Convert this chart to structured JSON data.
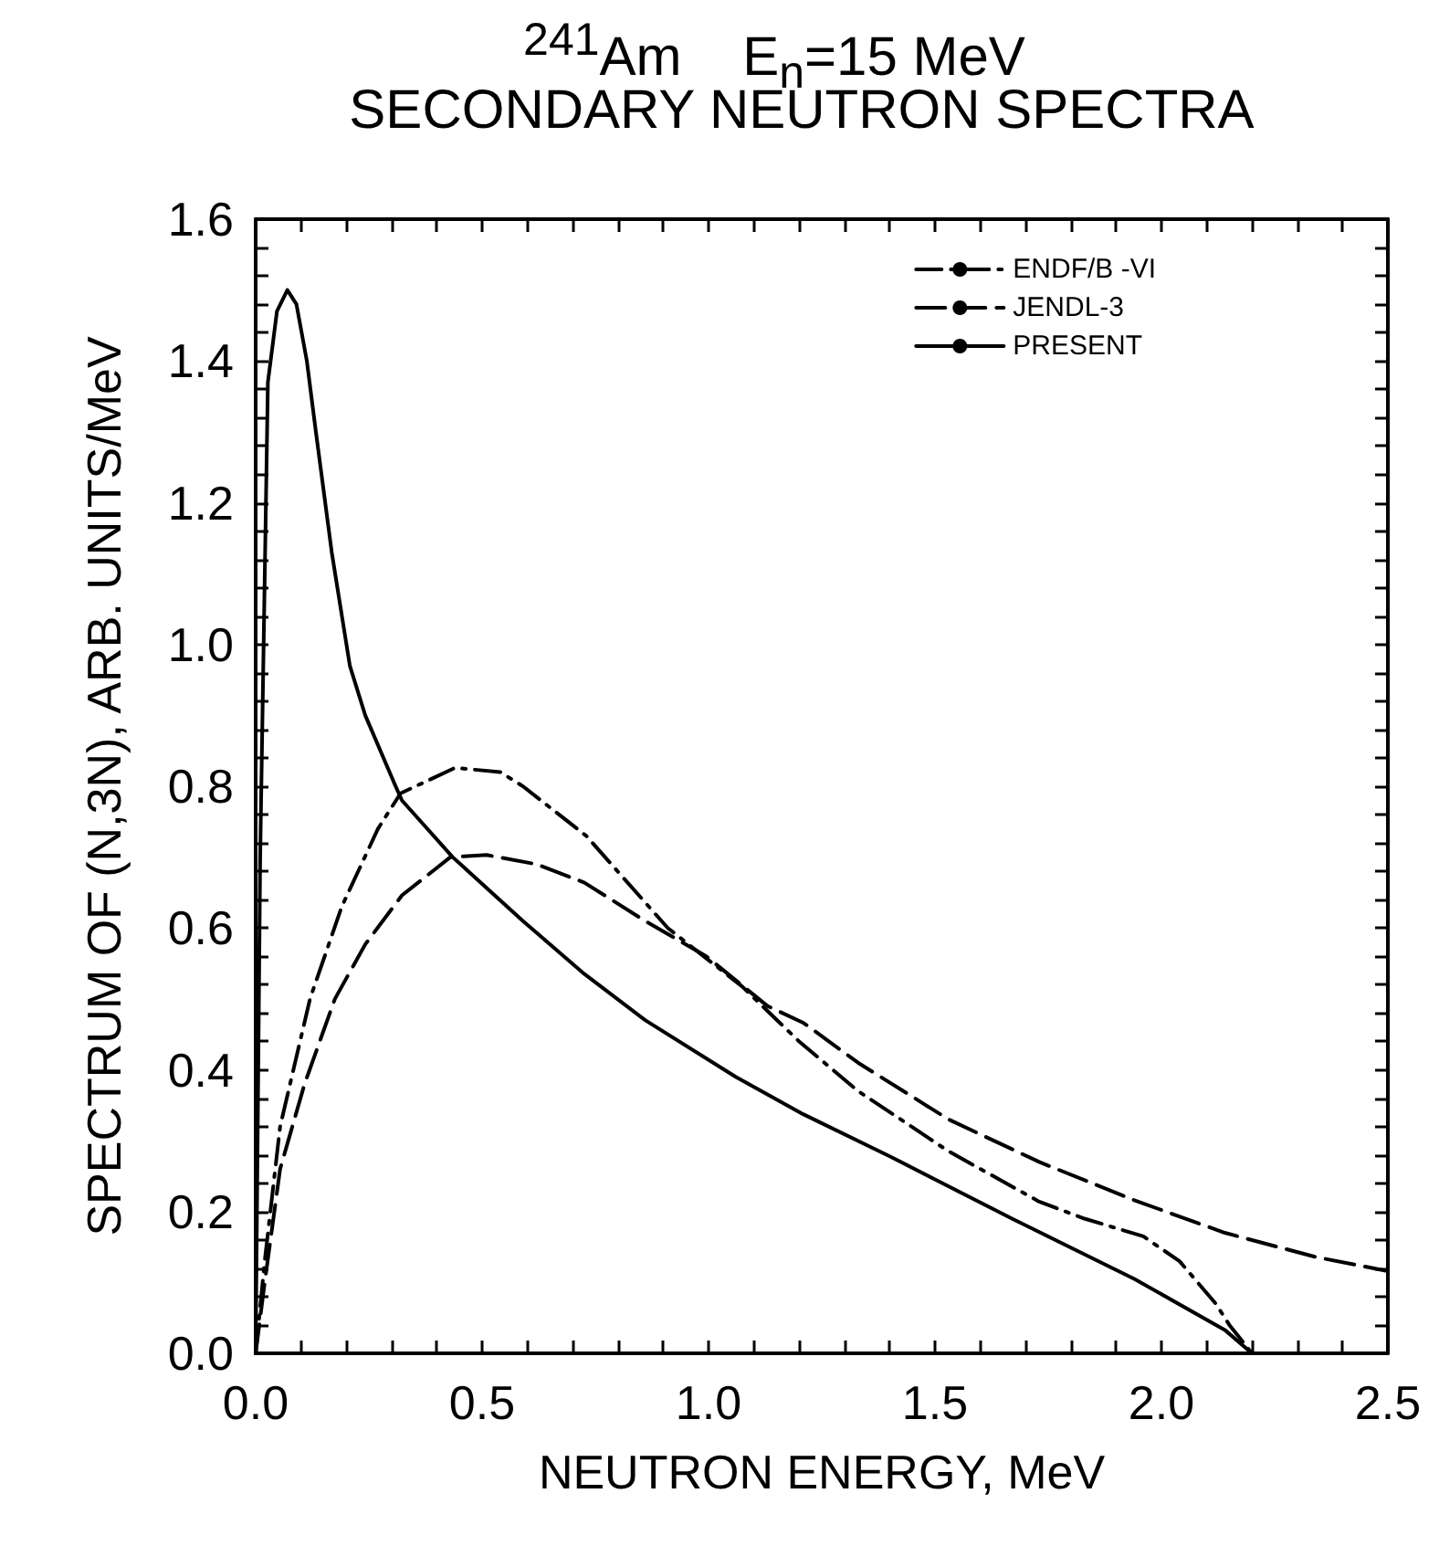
{
  "chart_data": {
    "type": "line",
    "title": "$^{241}$Am    E$_{n}$=15 MeV",
    "subtitle": "SECONDARY NEUTRON SPECTRA",
    "xlabel": "NEUTRON ENERGY, MeV",
    "ylabel": "SPECTRUM OF (N,3N), ARB. UNITS/MeV",
    "xlim": [
      0,
      2.5
    ],
    "ylim": [
      0,
      1.6
    ],
    "xticks": [
      {
        "value": 0,
        "label": "0.0"
      },
      {
        "value": 0.1,
        "label": null
      },
      {
        "value": 0.2,
        "label": null
      },
      {
        "value": 0.3,
        "label": null
      },
      {
        "value": 0.4,
        "label": null
      },
      {
        "value": 0.5,
        "label": "0.5"
      },
      {
        "value": 0.6,
        "label": null
      },
      {
        "value": 0.7,
        "label": null
      },
      {
        "value": 0.8,
        "label": null
      },
      {
        "value": 0.9,
        "label": null
      },
      {
        "value": 1,
        "label": "1.0"
      },
      {
        "value": 1.1,
        "label": null
      },
      {
        "value": 1.2,
        "label": null
      },
      {
        "value": 1.3,
        "label": null
      },
      {
        "value": 1.4,
        "label": null
      },
      {
        "value": 1.5,
        "label": "1.5"
      },
      {
        "value": 1.6,
        "label": null
      },
      {
        "value": 1.7,
        "label": null
      },
      {
        "value": 1.8,
        "label": null
      },
      {
        "value": 1.9,
        "label": null
      },
      {
        "value": 2,
        "label": "2.0"
      },
      {
        "value": 2.1,
        "label": null
      },
      {
        "value": 2.2,
        "label": null
      },
      {
        "value": 2.3,
        "label": null
      },
      {
        "value": 2.4,
        "label": null
      },
      {
        "value": 2.5,
        "label": "2.5"
      }
    ],
    "yticks": [
      {
        "value": 0,
        "label": "0.0"
      },
      {
        "value": 0.04,
        "label": null
      },
      {
        "value": 0.08,
        "label": null
      },
      {
        "value": 0.12,
        "label": null
      },
      {
        "value": 0.16,
        "label": null
      },
      {
        "value": 0.2,
        "label": "0.2"
      },
      {
        "value": 0.24,
        "label": null
      },
      {
        "value": 0.28,
        "label": null
      },
      {
        "value": 0.32,
        "label": null
      },
      {
        "value": 0.36,
        "label": null
      },
      {
        "value": 0.4,
        "label": "0.4"
      },
      {
        "value": 0.44,
        "label": null
      },
      {
        "value": 0.48,
        "label": null
      },
      {
        "value": 0.52,
        "label": null
      },
      {
        "value": 0.56,
        "label": null
      },
      {
        "value": 0.6,
        "label": "0.6"
      },
      {
        "value": 0.64,
        "label": null
      },
      {
        "value": 0.68,
        "label": null
      },
      {
        "value": 0.72,
        "label": null
      },
      {
        "value": 0.76,
        "label": null
      },
      {
        "value": 0.8,
        "label": "0.8"
      },
      {
        "value": 0.84,
        "label": null
      },
      {
        "value": 0.88,
        "label": null
      },
      {
        "value": 0.92,
        "label": null
      },
      {
        "value": 0.96,
        "label": null
      },
      {
        "value": 1,
        "label": "1.0"
      },
      {
        "value": 1.04,
        "label": null
      },
      {
        "value": 1.08,
        "label": null
      },
      {
        "value": 1.12,
        "label": null
      },
      {
        "value": 1.16,
        "label": null
      },
      {
        "value": 1.2,
        "label": "1.2"
      },
      {
        "value": 1.24,
        "label": null
      },
      {
        "value": 1.28,
        "label": null
      },
      {
        "value": 1.32,
        "label": null
      },
      {
        "value": 1.36,
        "label": null
      },
      {
        "value": 1.4,
        "label": "1.4"
      },
      {
        "value": 1.44,
        "label": null
      },
      {
        "value": 1.48,
        "label": null
      },
      {
        "value": 1.52,
        "label": null
      },
      {
        "value": 1.56,
        "label": null
      },
      {
        "value": 1.6,
        "label": "1.6"
      }
    ],
    "grid": false,
    "legend": "top right",
    "marker": "none",
    "series": [
      {
        "name": "ENDF/B -VI",
        "color": "#000000",
        "line_style": "dashdot",
        "x": [
          0,
          0.02,
          0.054,
          0.12,
          0.19,
          0.27,
          0.32,
          0.44,
          0.54,
          0.59,
          0.73,
          0.91,
          1.075,
          1.2,
          1.33,
          1.53,
          1.73,
          1.83,
          1.96,
          2.04,
          2.12,
          2.15,
          2.2
        ],
        "values": [
          0,
          0.13,
          0.32,
          0.5,
          0.63,
          0.74,
          0.79,
          0.826,
          0.82,
          0.8,
          0.73,
          0.6,
          0.517,
          0.44,
          0.37,
          0.285,
          0.214,
          0.19,
          0.165,
          0.13,
          0.07,
          0.04,
          0
        ]
      },
      {
        "name": "JENDL-3",
        "color": "#000000",
        "line_style": "dashed",
        "x": [
          0,
          0.02,
          0.054,
          0.108,
          0.175,
          0.242,
          0.323,
          0.43,
          0.51,
          0.62,
          0.726,
          0.86,
          0.995,
          1.13,
          1.21,
          1.33,
          1.53,
          1.73,
          1.94,
          2.14,
          2.34,
          2.5
        ],
        "values": [
          0,
          0.1,
          0.26,
          0.38,
          0.5,
          0.577,
          0.646,
          0.7,
          0.703,
          0.69,
          0.664,
          0.61,
          0.56,
          0.49,
          0.466,
          0.41,
          0.33,
          0.27,
          0.216,
          0.17,
          0.136,
          0.116
        ]
      },
      {
        "name": "PRESENT",
        "color": "#000000",
        "line_style": "solid",
        "x": [
          0,
          0.01,
          0.027,
          0.047,
          0.07,
          0.09,
          0.113,
          0.133,
          0.168,
          0.208,
          0.242,
          0.309,
          0.323,
          0.435,
          0.59,
          0.726,
          0.86,
          1.06,
          1.21,
          1.4,
          1.67,
          1.94,
          2.14,
          2.2
        ],
        "values": [
          0,
          0.7,
          1.37,
          1.47,
          1.5,
          1.48,
          1.4,
          1.3,
          1.13,
          0.97,
          0.9,
          0.8,
          0.78,
          0.7,
          0.61,
          0.535,
          0.47,
          0.39,
          0.337,
          0.278,
          0.19,
          0.105,
          0.033,
          0
        ]
      }
    ]
  }
}
